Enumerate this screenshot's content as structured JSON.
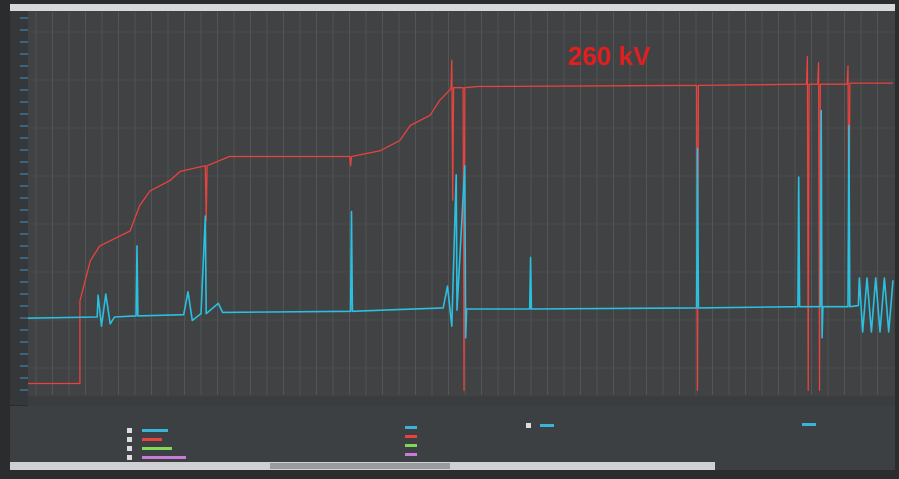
{
  "chart_data": {
    "type": "line",
    "annotation": "260 kV",
    "xlim": [
      0,
      100
    ],
    "ylim": [
      -10,
      324
    ],
    "grid": true,
    "series": [
      {
        "color": "#e8433e",
        "x": [
          0,
          6,
          6,
          7.2,
          8.3,
          11.8,
          12.9,
          14.1,
          16.4,
          17.6,
          20.5,
          20.6,
          20.7,
          23.3,
          37.2,
          37.3,
          37.4,
          40.7,
          43,
          44.2,
          46.5,
          47.6,
          48.9,
          49,
          49.1,
          49.2,
          50.3,
          50.4,
          50.5,
          52,
          77.3,
          77.4,
          77.5,
          90,
          90.1,
          90.2,
          90.3,
          91.3,
          91.4,
          91.5,
          91.6,
          94.7,
          94.8,
          94.9,
          95,
          100
        ],
        "values": [
          0,
          0,
          72,
          107,
          120,
          133,
          155,
          168,
          177,
          185,
          190,
          142,
          190,
          198,
          198,
          190,
          198,
          203,
          212,
          225,
          234,
          247,
          257,
          282,
          160,
          258,
          258,
          -6,
          258,
          259,
          260,
          -6,
          260,
          261,
          285,
          -6,
          261,
          261,
          280,
          -6,
          261,
          261,
          277,
          105,
          262,
          262
        ]
      },
      {
        "color": "#2bbfe0",
        "x": [
          0,
          8,
          8.1,
          8.5,
          9,
          9.5,
          10,
          12.5,
          12.6,
          12.7,
          18,
          18.5,
          19,
          20,
          20.5,
          20.6,
          22,
          22.5,
          37.3,
          37.4,
          37.5,
          48,
          48.5,
          49,
          49.5,
          49.6,
          50.5,
          50.6,
          50.7,
          58,
          58.1,
          58.2,
          77.3,
          77.4,
          77.5,
          89,
          89.1,
          89.2,
          91.6,
          91.7,
          91.8,
          91.9,
          94.8,
          94.9,
          95,
          96,
          96.1,
          96.5,
          97,
          97.5,
          98,
          98.5,
          99,
          99.5,
          100
        ],
        "values": [
          57,
          58,
          77,
          50,
          78,
          52,
          58,
          59,
          120,
          59,
          60,
          80,
          55,
          61,
          146,
          61,
          70,
          62,
          63,
          150,
          63,
          66,
          85,
          50,
          182,
          64,
          190,
          40,
          65,
          65,
          110,
          65,
          66,
          205,
          66,
          67,
          180,
          67,
          67,
          238,
          40,
          67,
          67,
          225,
          67,
          68,
          92,
          45,
          92,
          45,
          92,
          45,
          92,
          45,
          90
        ]
      }
    ]
  }
}
